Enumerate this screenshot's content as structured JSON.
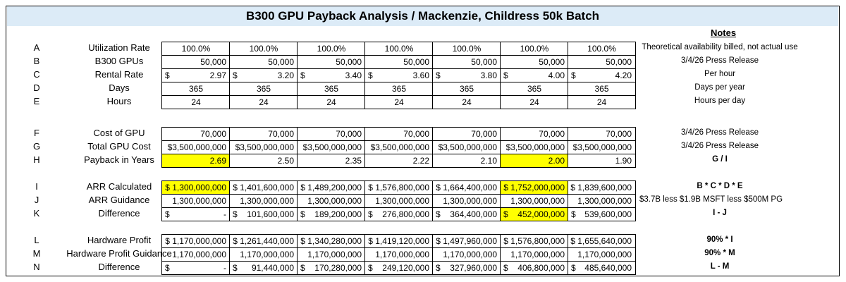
{
  "title": "B300 GPU Payback Analysis / Mackenzie, Childress 50k Batch",
  "notes_header": "Notes",
  "highlight_color": "#ffff00",
  "header_color": "#dcebf7",
  "groups": [
    {
      "rows": [
        {
          "letter": "A",
          "label": "Utilization Rate",
          "note": "Theoretical availability billed, not actual use",
          "align": "center",
          "cells": [
            {
              "v": "100.0%"
            },
            {
              "v": "100.0%"
            },
            {
              "v": "100.0%"
            },
            {
              "v": "100.0%"
            },
            {
              "v": "100.0%"
            },
            {
              "v": "100.0%"
            },
            {
              "v": "100.0%"
            }
          ]
        },
        {
          "letter": "B",
          "label": "B300 GPUs",
          "note": "3/4/26 Press Release",
          "align": "right",
          "cells": [
            {
              "v": "50,000"
            },
            {
              "v": "50,000"
            },
            {
              "v": "50,000"
            },
            {
              "v": "50,000"
            },
            {
              "v": "50,000"
            },
            {
              "v": "50,000"
            },
            {
              "v": "50,000"
            }
          ]
        },
        {
          "letter": "C",
          "label": "Rental Rate",
          "note": "Per hour",
          "align": "right",
          "cells": [
            {
              "d": "$",
              "v": "2.97"
            },
            {
              "d": "$",
              "v": "3.20"
            },
            {
              "d": "$",
              "v": "3.40"
            },
            {
              "d": "$",
              "v": "3.60"
            },
            {
              "d": "$",
              "v": "3.80"
            },
            {
              "d": "$",
              "v": "4.00"
            },
            {
              "d": "$",
              "v": "4.20"
            }
          ]
        },
        {
          "letter": "D",
          "label": "Days",
          "note": "Days per year",
          "align": "center",
          "cells": [
            {
              "v": "365"
            },
            {
              "v": "365"
            },
            {
              "v": "365"
            },
            {
              "v": "365"
            },
            {
              "v": "365"
            },
            {
              "v": "365"
            },
            {
              "v": "365"
            }
          ]
        },
        {
          "letter": "E",
          "label": "Hours",
          "note": "Hours per day",
          "align": "center",
          "cells": [
            {
              "v": "24"
            },
            {
              "v": "24"
            },
            {
              "v": "24"
            },
            {
              "v": "24"
            },
            {
              "v": "24"
            },
            {
              "v": "24"
            },
            {
              "v": "24"
            }
          ]
        }
      ]
    },
    {
      "rows": [
        {
          "letter": "F",
          "label": "Cost of GPU",
          "note": "3/4/26 Press Release",
          "align": "right",
          "cells": [
            {
              "v": "70,000"
            },
            {
              "v": "70,000"
            },
            {
              "v": "70,000"
            },
            {
              "v": "70,000"
            },
            {
              "v": "70,000"
            },
            {
              "v": "70,000"
            },
            {
              "v": "70,000"
            }
          ]
        },
        {
          "letter": "G",
          "label": "Total GPU Cost",
          "note": "3/4/26 Press Release",
          "align": "right",
          "cells": [
            {
              "v": "$3,500,000,000"
            },
            {
              "v": "$3,500,000,000"
            },
            {
              "v": "$3,500,000,000"
            },
            {
              "v": "$3,500,000,000"
            },
            {
              "v": "$3,500,000,000"
            },
            {
              "v": "$3,500,000,000"
            },
            {
              "v": "$3,500,000,000"
            }
          ]
        },
        {
          "letter": "H",
          "label": "Payback in Years",
          "note": "G / I",
          "note_bold": true,
          "align": "right",
          "cells": [
            {
              "v": "2.69",
              "hl": true
            },
            {
              "v": "2.50"
            },
            {
              "v": "2.35"
            },
            {
              "v": "2.22"
            },
            {
              "v": "2.10"
            },
            {
              "v": "2.00",
              "hl": true
            },
            {
              "v": "1.90"
            }
          ]
        }
      ]
    },
    {
      "rows": [
        {
          "letter": "I",
          "label": "ARR Calculated",
          "note": "B * C * D * E",
          "note_bold": true,
          "align": "right",
          "cells": [
            {
              "v": "$ 1,300,000,000",
              "hl": true
            },
            {
              "v": "$ 1,401,600,000"
            },
            {
              "v": "$ 1,489,200,000"
            },
            {
              "v": "$ 1,576,800,000"
            },
            {
              "v": "$ 1,664,400,000"
            },
            {
              "v": "$ 1,752,000,000",
              "hl": true
            },
            {
              "v": "$ 1,839,600,000"
            }
          ]
        },
        {
          "letter": "J",
          "label": "ARR Guidance",
          "note": "$3.7B less $1.9B MSFT less $500M PG",
          "note_left": true,
          "align": "right",
          "cells": [
            {
              "v": "1,300,000,000"
            },
            {
              "v": "1,300,000,000"
            },
            {
              "v": "1,300,000,000"
            },
            {
              "v": "1,300,000,000"
            },
            {
              "v": "1,300,000,000"
            },
            {
              "v": "1,300,000,000"
            },
            {
              "v": "1,300,000,000"
            }
          ]
        },
        {
          "letter": "K",
          "label": "Difference",
          "note": "I - J",
          "note_bold": true,
          "align": "right",
          "cells": [
            {
              "d": "$",
              "v": "-"
            },
            {
              "d": "$",
              "v": "101,600,000"
            },
            {
              "d": "$",
              "v": "189,200,000"
            },
            {
              "d": "$",
              "v": "276,800,000"
            },
            {
              "d": "$",
              "v": "364,400,000"
            },
            {
              "d": "$",
              "v": "452,000,000",
              "hl": true
            },
            {
              "d": "$",
              "v": "539,600,000"
            }
          ]
        }
      ]
    },
    {
      "rows": [
        {
          "letter": "L",
          "label": "Hardware Profit",
          "note": "90% * I",
          "note_bold": true,
          "align": "right",
          "cells": [
            {
              "v": "$ 1,170,000,000"
            },
            {
              "v": "$ 1,261,440,000"
            },
            {
              "v": "$ 1,340,280,000"
            },
            {
              "v": "$ 1,419,120,000"
            },
            {
              "v": "$ 1,497,960,000"
            },
            {
              "v": "$ 1,576,800,000"
            },
            {
              "v": "$ 1,655,640,000"
            }
          ]
        },
        {
          "letter": "M",
          "label": "Hardware Profit Guidance",
          "note": "90% * M",
          "note_bold": true,
          "align": "right",
          "cells": [
            {
              "v": "1,170,000,000"
            },
            {
              "v": "1,170,000,000"
            },
            {
              "v": "1,170,000,000"
            },
            {
              "v": "1,170,000,000"
            },
            {
              "v": "1,170,000,000"
            },
            {
              "v": "1,170,000,000"
            },
            {
              "v": "1,170,000,000"
            }
          ]
        },
        {
          "letter": "N",
          "label": "Difference",
          "note": "L - M",
          "note_bold": true,
          "align": "right",
          "cells": [
            {
              "d": "$",
              "v": "-"
            },
            {
              "d": "$",
              "v": "91,440,000"
            },
            {
              "d": "$",
              "v": "170,280,000"
            },
            {
              "d": "$",
              "v": "249,120,000"
            },
            {
              "d": "$",
              "v": "327,960,000"
            },
            {
              "d": "$",
              "v": "406,800,000"
            },
            {
              "d": "$",
              "v": "485,640,000"
            }
          ]
        }
      ]
    }
  ]
}
